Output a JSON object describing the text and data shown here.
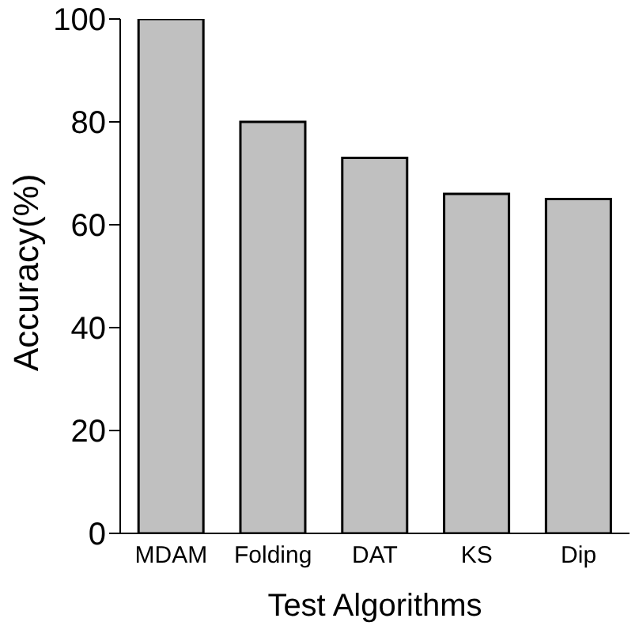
{
  "chart_data": {
    "type": "bar",
    "xlabel": "Test Algorithms",
    "ylabel": "Accuracy(%)",
    "categories": [
      "MDAM",
      "Folding",
      "DAT",
      "KS",
      "Dip"
    ],
    "values": [
      100,
      80,
      73,
      66,
      65
    ],
    "color": "#c0c0c0",
    "ylim": [
      0,
      100
    ],
    "yticks": [
      0,
      20,
      40,
      60,
      80,
      100
    ],
    "grid": false,
    "legend": false
  }
}
